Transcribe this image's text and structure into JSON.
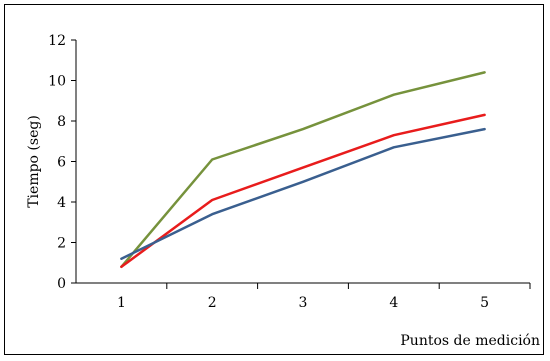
{
  "chart_data": {
    "type": "line",
    "title": "",
    "xlabel": "Puntos de medición",
    "ylabel": "Tiempo (seg)",
    "x": [
      1,
      2,
      3,
      4,
      5
    ],
    "xticks": [
      "1",
      "2",
      "3",
      "4",
      "5"
    ],
    "yticks": [
      "0",
      "2",
      "4",
      "6",
      "8",
      "10",
      "12"
    ],
    "ylim": [
      0,
      12
    ],
    "grid": false,
    "legend": "none",
    "series": [
      {
        "color": "#76923c",
        "values": [
          0.8,
          6.1,
          7.6,
          9.3,
          10.4
        ]
      },
      {
        "color": "#e81c1c",
        "values": [
          0.8,
          4.1,
          5.7,
          7.3,
          8.3
        ]
      },
      {
        "color": "#3a5f8f",
        "values": [
          1.2,
          3.4,
          5.0,
          6.7,
          7.6
        ]
      }
    ]
  }
}
